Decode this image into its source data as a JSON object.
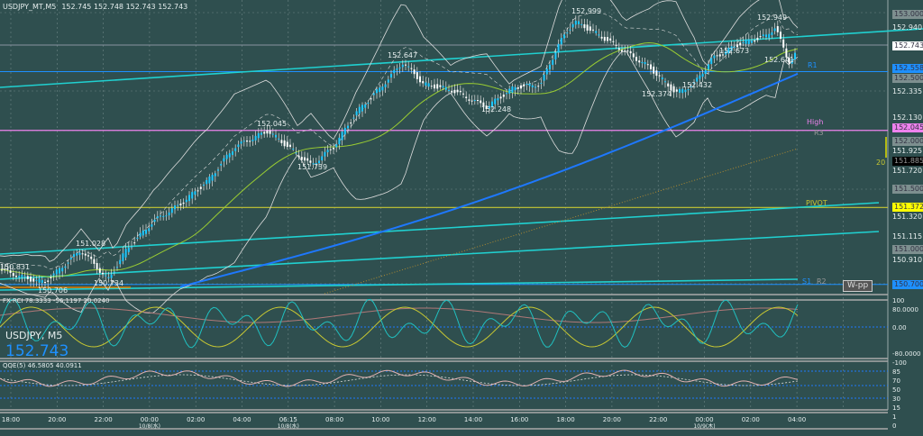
{
  "header": {
    "symbol": "USDJPY_MT,M5",
    "ohlc": "152.745 152.748 152.743 152.743"
  },
  "overlay": {
    "symbol": "USDJPY, M5",
    "price": "152.743"
  },
  "price_axis": [
    "152.940",
    "152.335",
    "152.130",
    "151.925",
    "151.720",
    "151.320",
    "151.115",
    "150.910"
  ],
  "price_tags": [
    {
      "text": "153.000",
      "color": "#7d8f8f"
    },
    {
      "text": "152.743",
      "color": "#ffffff"
    },
    {
      "text": "152.558",
      "color": "#1e90ff"
    },
    {
      "text": "152.500",
      "color": "#7d8f8f"
    },
    {
      "text": "152.045",
      "color": "#ee82ee"
    },
    {
      "text": "152.000",
      "color": "#7d8f8f"
    },
    {
      "text": "151.885",
      "color": "#000000"
    },
    {
      "text": "151.500",
      "color": "#7d8f8f"
    },
    {
      "text": "151.372",
      "color": "#ffff00"
    },
    {
      "text": "151.000",
      "color": "#7d8f8f"
    },
    {
      "text": "150.700",
      "color": "#1e90ff"
    }
  ],
  "chart_labels": {
    "h1": "152.999",
    "h2": "152.949",
    "h3": "152.647",
    "h4": "152.673",
    "h5": "152.045",
    "h6": "151.739",
    "h7": "152.374",
    "h8": "152.432",
    "h9": "152.248",
    "h10": "152.641",
    "h11": "151.028",
    "h12": "150.831",
    "h13": "150.706",
    "h14": "150.734",
    "r1": "R1",
    "high": "High",
    "r3": "R3",
    "pivot": "PIVOT",
    "s1": "S1",
    "r2": "R2",
    "wpp": "W-pp",
    "range": "20"
  },
  "ind1": {
    "title": "FX-RCI 78.3333 -56.1197 20.0240",
    "axis": [
      "100",
      "80.0000",
      "0.00",
      "-80.0000",
      "-100"
    ]
  },
  "ind2": {
    "title": "QQE(5) 46.5805 40.0911",
    "axis": [
      "85",
      "70",
      "50",
      "30",
      "15",
      "1",
      "0"
    ]
  },
  "time_axis": [
    {
      "t": "18:00",
      "d": ""
    },
    {
      "t": "20:00",
      "d": ""
    },
    {
      "t": "22:00",
      "d": ""
    },
    {
      "t": "00:00",
      "d": "10/8(水)"
    },
    {
      "t": "02:00",
      "d": ""
    },
    {
      "t": "04:00",
      "d": ""
    },
    {
      "t": "06:15",
      "d": "10/8(水)"
    },
    {
      "t": "08:00",
      "d": ""
    },
    {
      "t": "10:00",
      "d": ""
    },
    {
      "t": "12:00",
      "d": ""
    },
    {
      "t": "14:00",
      "d": ""
    },
    {
      "t": "16:00",
      "d": ""
    },
    {
      "t": "18:00",
      "d": ""
    },
    {
      "t": "20:00",
      "d": ""
    },
    {
      "t": "22:00",
      "d": ""
    },
    {
      "t": "00:00",
      "d": "10/9(木)"
    },
    {
      "t": "02:00",
      "d": ""
    },
    {
      "t": "04:00",
      "d": ""
    }
  ],
  "chart_data": {
    "type": "candlestick",
    "symbol": "USDJPY",
    "timeframe": "M5",
    "last": 152.743,
    "ylim": [
      150.65,
      153.05
    ],
    "path": [
      [
        0,
        150.83
      ],
      [
        30,
        150.75
      ],
      [
        50,
        150.72
      ],
      [
        90,
        151.0
      ],
      [
        120,
        150.74
      ],
      [
        140,
        151.0
      ],
      [
        170,
        151.25
      ],
      [
        200,
        151.4
      ],
      [
        230,
        151.6
      ],
      [
        260,
        151.9
      ],
      [
        297,
        152.04
      ],
      [
        320,
        151.9
      ],
      [
        345,
        151.74
      ],
      [
        370,
        151.9
      ],
      [
        395,
        152.2
      ],
      [
        420,
        152.4
      ],
      [
        447,
        152.64
      ],
      [
        470,
        152.45
      ],
      [
        500,
        152.4
      ],
      [
        540,
        152.25
      ],
      [
        570,
        152.42
      ],
      [
        600,
        152.45
      ],
      [
        620,
        152.8
      ],
      [
        637,
        153.0
      ],
      [
        660,
        152.9
      ],
      [
        690,
        152.75
      ],
      [
        720,
        152.6
      ],
      [
        750,
        152.37
      ],
      [
        770,
        152.45
      ],
      [
        790,
        152.67
      ],
      [
        820,
        152.8
      ],
      [
        850,
        152.87
      ],
      [
        860,
        152.95
      ],
      [
        875,
        152.64
      ],
      [
        885,
        152.74
      ]
    ],
    "levels": {
      "R1": 152.558,
      "High": 152.045,
      "PIVOT": 151.372,
      "W-pp": 150.7
    }
  }
}
